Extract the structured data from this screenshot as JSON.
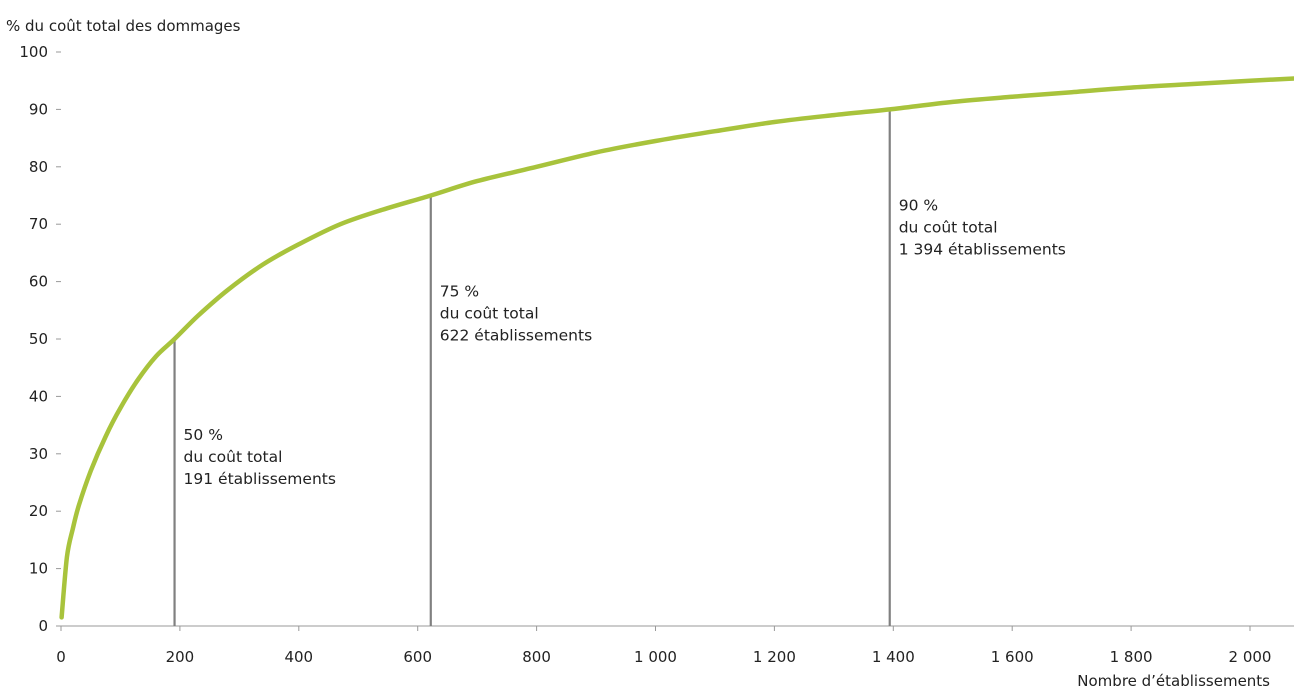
{
  "chart_data": {
    "type": "line",
    "ylabel": "% du coût total des dommages",
    "xlabel": "Nombre d’établissements",
    "xlim": [
      0,
      2100
    ],
    "ylim": [
      0,
      100
    ],
    "x_ticks": [
      {
        "value": 0,
        "label": "0"
      },
      {
        "value": 200,
        "label": "200"
      },
      {
        "value": 400,
        "label": "400"
      },
      {
        "value": 600,
        "label": "600"
      },
      {
        "value": 800,
        "label": "800"
      },
      {
        "value": 1000,
        "label": "1 000"
      },
      {
        "value": 1200,
        "label": "1 200"
      },
      {
        "value": 1400,
        "label": "1 400"
      },
      {
        "value": 1600,
        "label": "1 600"
      },
      {
        "value": 1800,
        "label": "1 800"
      },
      {
        "value": 2000,
        "label": "2 000"
      }
    ],
    "y_ticks": [
      {
        "value": 0,
        "label": "0"
      },
      {
        "value": 10,
        "label": "10"
      },
      {
        "value": 20,
        "label": "20"
      },
      {
        "value": 30,
        "label": "30"
      },
      {
        "value": 40,
        "label": "40"
      },
      {
        "value": 50,
        "label": "50"
      },
      {
        "value": 60,
        "label": "60"
      },
      {
        "value": 70,
        "label": "70"
      },
      {
        "value": 80,
        "label": "80"
      },
      {
        "value": 90,
        "label": "90"
      },
      {
        "value": 100,
        "label": "100"
      }
    ],
    "grid": false,
    "series": [
      {
        "color": "#a8c33c",
        "x": [
          1,
          10,
          20,
          30,
          50,
          75,
          100,
          130,
          160,
          191,
          230,
          280,
          340,
          400,
          470,
          540,
          622,
          700,
          800,
          900,
          1000,
          1100,
          1200,
          1300,
          1394,
          1500,
          1600,
          1700,
          1800,
          1900,
          2000,
          2100
        ],
        "y": [
          1.5,
          12,
          17,
          21,
          27,
          33,
          38,
          43,
          47,
          50,
          54,
          58.5,
          63,
          66.5,
          70,
          72.5,
          75,
          77.5,
          80,
          82.5,
          84.5,
          86.2,
          87.8,
          89,
          90,
          91.3,
          92.2,
          93,
          93.8,
          94.4,
          95,
          95.5
        ]
      }
    ],
    "annotations": [
      {
        "x": 191,
        "y": 50,
        "lines": [
          "50 %",
          "du coût total",
          "191 établissements"
        ]
      },
      {
        "x": 622,
        "y": 75,
        "lines": [
          "75 %",
          "du coût total",
          "622 établissements"
        ]
      },
      {
        "x": 1394,
        "y": 90,
        "lines": [
          "90 %",
          "du coût total",
          "1 394 établissements"
        ]
      }
    ],
    "colors": {
      "line": "#a8c33c",
      "marker": "#808080",
      "axis": "#999999"
    }
  }
}
